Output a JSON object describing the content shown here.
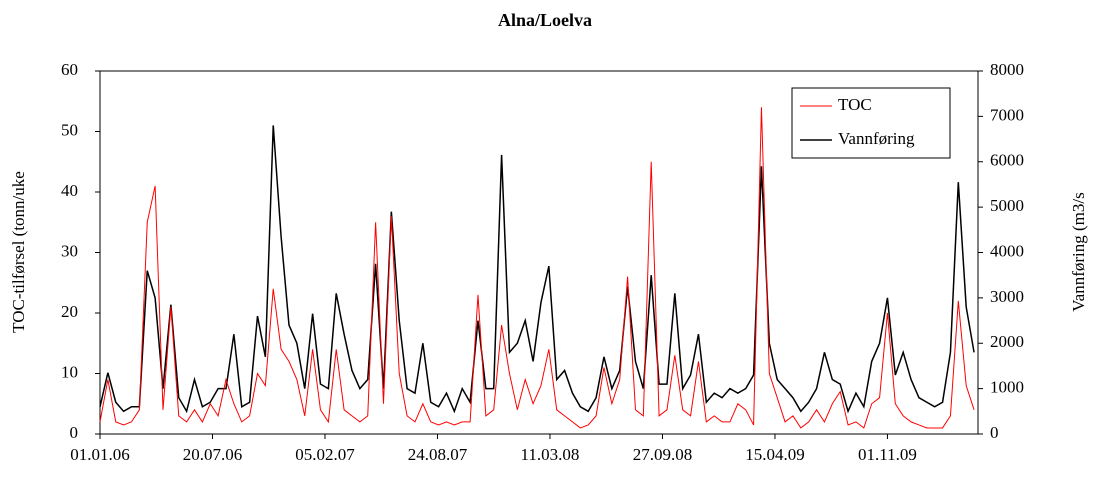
{
  "chart_data": {
    "type": "line",
    "title": "Alna/Loelva",
    "y_label": "TOC-tilførsel (tonn/uke",
    "y2_label": "Vannføring (m3/s",
    "x": [
      "01.01.06",
      "15.01.06",
      "29.01.06",
      "12.02.06",
      "26.02.06",
      "12.03.06",
      "26.03.06",
      "09.04.06",
      "23.04.06",
      "07.05.06",
      "21.05.06",
      "04.06.06",
      "18.06.06",
      "02.07.06",
      "16.07.06",
      "30.07.06",
      "13.08.06",
      "27.08.06",
      "10.09.06",
      "24.09.06",
      "08.10.06",
      "22.10.06",
      "05.11.06",
      "19.11.06",
      "03.12.06",
      "17.12.06",
      "31.12.06",
      "14.01.07",
      "28.01.07",
      "11.02.07",
      "25.02.07",
      "11.03.07",
      "25.03.07",
      "08.04.07",
      "22.04.07",
      "06.05.07",
      "20.05.07",
      "03.06.07",
      "17.06.07",
      "01.07.07",
      "15.07.07",
      "29.07.07",
      "12.08.07",
      "26.08.07",
      "09.09.07",
      "23.09.07",
      "07.10.07",
      "21.10.07",
      "04.11.07",
      "18.11.07",
      "02.12.07",
      "16.12.07",
      "30.12.07",
      "13.01.08",
      "27.01.08",
      "10.02.08",
      "24.02.08",
      "09.03.08",
      "23.03.08",
      "06.04.08",
      "20.04.08",
      "04.05.08",
      "18.05.08",
      "01.06.08",
      "15.06.08",
      "29.06.08",
      "13.07.08",
      "27.07.08",
      "10.08.08",
      "24.08.08",
      "07.09.08",
      "21.09.08",
      "05.10.08",
      "19.10.08",
      "02.11.08",
      "16.11.08",
      "30.11.08",
      "14.12.08",
      "28.12.08",
      "11.01.09",
      "25.01.09",
      "08.02.09",
      "22.02.09",
      "08.03.09",
      "22.03.09",
      "05.04.09",
      "19.04.09",
      "03.05.09",
      "17.05.09",
      "31.05.09",
      "14.06.09",
      "28.06.09",
      "12.07.09",
      "26.07.09",
      "09.08.09",
      "23.08.09",
      "06.09.09",
      "20.09.09",
      "04.10.09",
      "18.10.09",
      "01.11.09",
      "15.11.09",
      "29.11.09",
      "13.12.09",
      "27.12.09",
      "10.01.10",
      "24.01.10",
      "07.02.10",
      "21.02.10",
      "07.03.10",
      "21.03.10",
      "04.04.10"
    ],
    "series": [
      {
        "name": "TOC",
        "color": "#ff0000",
        "axis": "y",
        "values": [
          2,
          9,
          2,
          1.5,
          2,
          4,
          35,
          41,
          4,
          21,
          3,
          2,
          4,
          2,
          5,
          3,
          9,
          5,
          2,
          3,
          10,
          8,
          24,
          14,
          12,
          9,
          3,
          14,
          4,
          2,
          14,
          4,
          3,
          2,
          3,
          35,
          5,
          36,
          10,
          3,
          2,
          5,
          2,
          1.5,
          2,
          1.5,
          2,
          2,
          23,
          3,
          4,
          18,
          10,
          4,
          9,
          5,
          8,
          14,
          4,
          3,
          2,
          1,
          1.5,
          3,
          11,
          5,
          9,
          26,
          4,
          3,
          45,
          3,
          4,
          13,
          4,
          3,
          12,
          2,
          3,
          2,
          2,
          5,
          4,
          1.5,
          54,
          10,
          6,
          2,
          3,
          1,
          2,
          4,
          2,
          5,
          7,
          1.5,
          2,
          1,
          5,
          6,
          20,
          5,
          3,
          2,
          1.5,
          1,
          1,
          1,
          3,
          22,
          8,
          4
        ]
      },
      {
        "name": "Vannføring",
        "color": "#000000",
        "axis": "y2",
        "values": [
          600,
          1350,
          700,
          500,
          600,
          600,
          3600,
          3000,
          1000,
          2850,
          800,
          500,
          1200,
          600,
          700,
          1000,
          1000,
          2200,
          600,
          700,
          2600,
          1700,
          6800,
          4350,
          2400,
          2000,
          1000,
          2650,
          1100,
          1000,
          3100,
          2200,
          1400,
          1000,
          1200,
          3750,
          1000,
          4900,
          2500,
          1000,
          900,
          2000,
          700,
          600,
          900,
          500,
          1000,
          700,
          2500,
          1000,
          1000,
          6150,
          1800,
          2000,
          2500,
          1600,
          2900,
          3700,
          1200,
          1400,
          900,
          600,
          500,
          800,
          1700,
          1000,
          1400,
          3250,
          1600,
          1000,
          3500,
          1100,
          1100,
          3100,
          1000,
          1300,
          2200,
          700,
          900,
          800,
          1000,
          900,
          1000,
          1300,
          5900,
          2000,
          1200,
          1000,
          800,
          500,
          700,
          1000,
          1800,
          1200,
          1100,
          500,
          900,
          600,
          1600,
          2000,
          3000,
          1300,
          1800,
          1200,
          800,
          700,
          600,
          700,
          1800,
          5550,
          2800,
          1800
        ]
      }
    ],
    "xlim": [
      "01.01.06",
      "11.04.10"
    ],
    "xticks": [
      "01.01.06",
      "20.07.06",
      "05.02.07",
      "24.08.07",
      "11.03.08",
      "27.09.08",
      "15.04.09",
      "01.11.09"
    ],
    "ylim": [
      0,
      60
    ],
    "yticks": [
      0,
      10,
      20,
      30,
      40,
      50,
      60
    ],
    "y2lim": [
      0,
      8000
    ],
    "y2ticks": [
      0,
      1000,
      2000,
      3000,
      4000,
      5000,
      6000,
      7000,
      8000
    ],
    "legend": "upper right"
  }
}
